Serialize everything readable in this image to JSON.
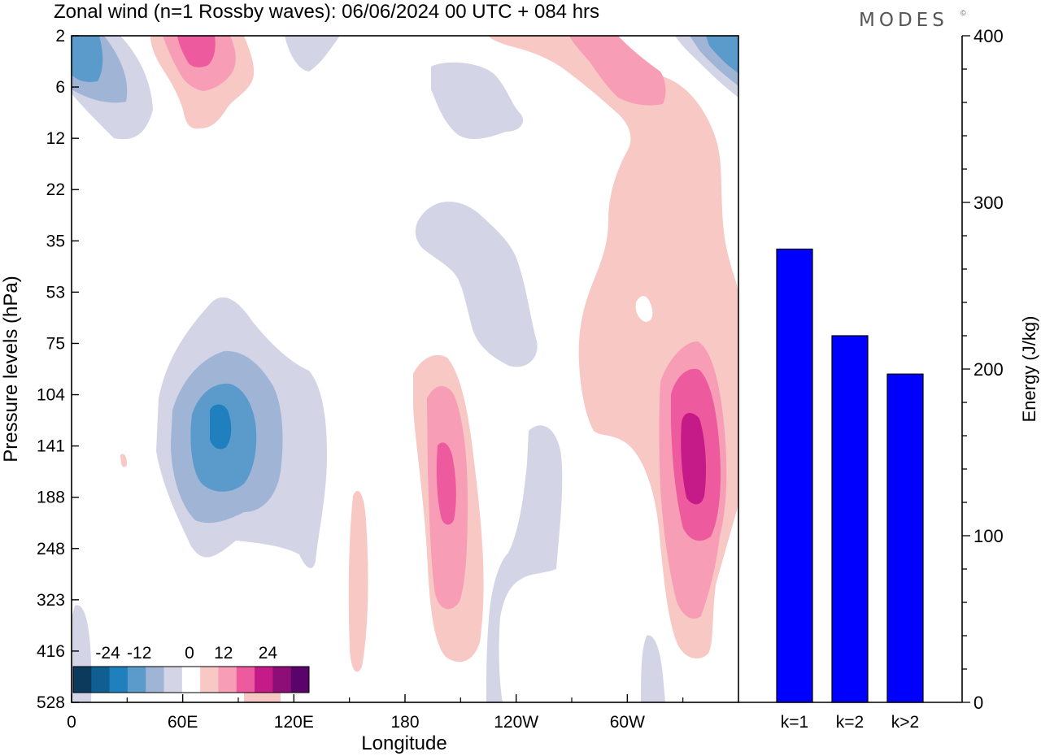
{
  "header": {
    "title": "Zonal wind (n=1 Rossby waves):  06/06/2024  00 UTC  + 084 hrs",
    "brand": "MODES",
    "brand_mark": "©"
  },
  "colors": {
    "contour_levels": [
      -24,
      -20,
      -16,
      -12,
      -8,
      -4,
      0,
      4,
      8,
      12,
      16,
      20,
      24
    ],
    "palette": [
      "#0b3a5c",
      "#0f5f92",
      "#1f80bd",
      "#5b9bcc",
      "#a0b4d6",
      "#d3d5e6",
      "#ffffff",
      "#f7c8c4",
      "#f79db6",
      "#ee5a9e",
      "#c41b88",
      "#8e0e78",
      "#5a0469"
    ],
    "bar": "#0000ff"
  },
  "chart_data": [
    {
      "type": "contour",
      "title": "Zonal wind (n=1 Rossby waves):  06/06/2024  00 UTC  + 084 hrs",
      "xlabel": "Longitude",
      "ylabel": "Pressure levels (hPa)",
      "x_ticks": [
        "0",
        "60E",
        "120E",
        "180",
        "120W",
        "60W"
      ],
      "y_ticks": [
        "2",
        "6",
        "12",
        "22",
        "35",
        "53",
        "75",
        "104",
        "141",
        "188",
        "248",
        "323",
        "416",
        "528"
      ],
      "colorbar_labels": [
        "-24",
        "-12",
        "0",
        "12",
        "24"
      ],
      "features": [
        {
          "sign": "negative",
          "longitude_deg": 78,
          "pressure_hPa": 125,
          "peak": -20
        },
        {
          "sign": "positive",
          "longitude_deg": 192,
          "pressure_hPa": 145,
          "peak": 16
        },
        {
          "sign": "positive",
          "longitude_deg": 318,
          "pressure_hPa": 145,
          "peak": 20
        },
        {
          "sign": "positive",
          "longitude_deg": 68,
          "pressure_hPa": 3,
          "peak": 16
        },
        {
          "sign": "negative",
          "longitude_deg": 10,
          "pressure_hPa": 4,
          "peak": -12
        },
        {
          "sign": "positive",
          "longitude_deg": 290,
          "pressure_hPa": 5,
          "peak": 8
        },
        {
          "sign": "negative",
          "longitude_deg": 355,
          "pressure_hPa": 3,
          "peak": -12
        }
      ]
    },
    {
      "type": "bar",
      "categories": [
        "k=1",
        "k=2",
        "k>2"
      ],
      "values": [
        272,
        220,
        197
      ],
      "ylabel": "Energy (J/kg)",
      "ylim": [
        0,
        400
      ],
      "y_ticks": [
        0,
        100,
        200,
        300,
        400
      ]
    }
  ]
}
